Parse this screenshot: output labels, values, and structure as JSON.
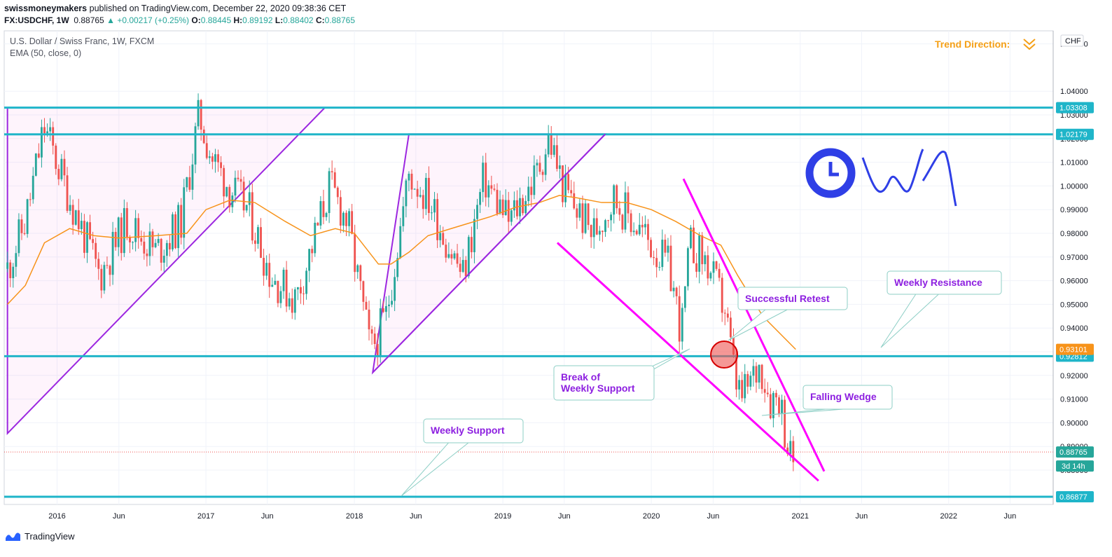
{
  "header": {
    "publisher": "swissmoneymakers",
    "published_text": "published on TradingView.com, December 22, 2020 09:38:36 CET",
    "symbol": "FX:USDCHF, 1W",
    "last": "0.88765",
    "change": "+0.00217 (+0.25%)",
    "open_label": "O:",
    "open": "0.88445",
    "high_label": "H:",
    "high": "0.89192",
    "low_label": "L:",
    "low": "0.88402",
    "close_label": "C:",
    "close": "0.88765"
  },
  "legend": {
    "title": "U.S. Dollar / Swiss Franc, 1W, FXCM",
    "indicator": "EMA (50, close, 0)"
  },
  "currency_badge": "CHF",
  "trend_direction": "Trend Direction:",
  "footer": {
    "brand": "TradingView"
  },
  "colors": {
    "up": "#26a69a",
    "down": "#ef5350",
    "ema": "#f7931a",
    "level": "#1fb5c9",
    "triangle": "#9c27e0",
    "wedge": "#ff00ff",
    "annotation": "#8d1fe0",
    "trend": "#f5a017",
    "logo": "#2f3fe6"
  },
  "annotations": {
    "successful_retest": "Successful Retest",
    "weekly_resistance": "Weekly Resistance",
    "break_line1": "Break of",
    "break_line2": "Weekly Support",
    "falling_wedge": "Falling Wedge",
    "weekly_support": "Weekly Support"
  },
  "chart_data": {
    "type": "candlestick",
    "title": "U.S. Dollar / Swiss Franc, 1W, FXCM",
    "indicator": "EMA (50, close, 0)",
    "x_range": [
      "2015-09",
      "2022-09"
    ],
    "ylim": [
      0.8655,
      1.0655
    ],
    "y_ticks": [
      0.86877,
      0.88,
      0.89,
      0.9,
      0.91,
      0.92,
      0.93,
      0.94,
      0.95,
      0.96,
      0.97,
      0.98,
      0.99,
      1.0,
      1.01,
      1.02,
      1.03,
      1.04,
      1.06
    ],
    "y_tick_labels": [
      "0.86877",
      "0.88000",
      "0.89000",
      "0.90000",
      "0.91000",
      "0.92000",
      "0.93000",
      "0.94000",
      "0.95000",
      "0.96000",
      "0.97000",
      "0.98000",
      "0.99000",
      "1.00000",
      "1.01000",
      "1.02000",
      "1.03000",
      "1.04000",
      "1.06000"
    ],
    "x_ticks": [
      {
        "date": "2016-01",
        "label": "2016"
      },
      {
        "date": "2016-06",
        "label": "Jun"
      },
      {
        "date": "2017-01",
        "label": "2017"
      },
      {
        "date": "2017-06",
        "label": "Jun"
      },
      {
        "date": "2018-01",
        "label": "2018"
      },
      {
        "date": "2018-06",
        "label": "Jun"
      },
      {
        "date": "2019-01",
        "label": "2019"
      },
      {
        "date": "2019-06",
        "label": "Jun"
      },
      {
        "date": "2020-01",
        "label": "2020"
      },
      {
        "date": "2020-06",
        "label": "Jun"
      },
      {
        "date": "2021-01",
        "label": "2021"
      },
      {
        "date": "2021-06",
        "label": "Jun"
      },
      {
        "date": "2022-01",
        "label": "2022"
      },
      {
        "date": "2022-06",
        "label": "Jun"
      }
    ],
    "close_path": [
      {
        "date": "2015-09-01",
        "value": 0.965
      },
      {
        "date": "2015-10-15",
        "value": 0.985
      },
      {
        "date": "2015-11-30",
        "value": 1.025
      },
      {
        "date": "2016-02-01",
        "value": 0.995
      },
      {
        "date": "2016-04-15",
        "value": 0.962
      },
      {
        "date": "2016-06-20",
        "value": 0.985
      },
      {
        "date": "2016-09-01",
        "value": 0.972
      },
      {
        "date": "2016-11-01",
        "value": 0.985
      },
      {
        "date": "2016-12-15",
        "value": 1.03
      },
      {
        "date": "2017-01-15",
        "value": 1.012
      },
      {
        "date": "2017-03-01",
        "value": 0.999
      },
      {
        "date": "2017-04-15",
        "value": 0.99
      },
      {
        "date": "2017-06-10",
        "value": 0.962
      },
      {
        "date": "2017-08-10",
        "value": 0.952
      },
      {
        "date": "2017-09-20",
        "value": 0.975
      },
      {
        "date": "2017-11-01",
        "value": 1.0
      },
      {
        "date": "2017-12-15",
        "value": 0.985
      },
      {
        "date": "2018-02-10",
        "value": 0.93
      },
      {
        "date": "2018-03-20",
        "value": 0.945
      },
      {
        "date": "2018-05-15",
        "value": 1.005
      },
      {
        "date": "2018-07-01",
        "value": 0.995
      },
      {
        "date": "2018-08-20",
        "value": 0.975
      },
      {
        "date": "2018-09-25",
        "value": 0.962
      },
      {
        "date": "2018-11-15",
        "value": 1.003
      },
      {
        "date": "2019-01-15",
        "value": 0.985
      },
      {
        "date": "2019-03-20",
        "value": 1.003
      },
      {
        "date": "2019-04-25",
        "value": 1.02
      },
      {
        "date": "2019-06-01",
        "value": 0.998
      },
      {
        "date": "2019-08-10",
        "value": 0.98
      },
      {
        "date": "2019-10-01",
        "value": 0.995
      },
      {
        "date": "2019-12-20",
        "value": 0.978
      },
      {
        "date": "2020-02-15",
        "value": 0.965
      },
      {
        "date": "2020-03-15",
        "value": 0.938
      },
      {
        "date": "2020-04-05",
        "value": 0.975
      },
      {
        "date": "2020-05-15",
        "value": 0.968
      },
      {
        "date": "2020-06-30",
        "value": 0.948
      },
      {
        "date": "2020-07-25",
        "value": 0.918
      },
      {
        "date": "2020-08-10",
        "value": 0.91
      },
      {
        "date": "2020-09-25",
        "value": 0.925
      },
      {
        "date": "2020-10-20",
        "value": 0.91
      },
      {
        "date": "2020-11-10",
        "value": 0.912
      },
      {
        "date": "2020-12-07",
        "value": 0.885
      },
      {
        "date": "2020-12-21",
        "value": 0.8877
      }
    ],
    "ema50": [
      {
        "date": "2015-09-01",
        "value": 0.95
      },
      {
        "date": "2015-10-15",
        "value": 0.958
      },
      {
        "date": "2015-12-01",
        "value": 0.976
      },
      {
        "date": "2016-02-01",
        "value": 0.982
      },
      {
        "date": "2016-04-01",
        "value": 0.979
      },
      {
        "date": "2016-06-01",
        "value": 0.978
      },
      {
        "date": "2016-09-01",
        "value": 0.979
      },
      {
        "date": "2016-11-15",
        "value": 0.98
      },
      {
        "date": "2017-01-01",
        "value": 0.99
      },
      {
        "date": "2017-03-01",
        "value": 0.994
      },
      {
        "date": "2017-05-01",
        "value": 0.993
      },
      {
        "date": "2017-07-15",
        "value": 0.985
      },
      {
        "date": "2017-09-15",
        "value": 0.979
      },
      {
        "date": "2017-11-15",
        "value": 0.982
      },
      {
        "date": "2018-01-01",
        "value": 0.98
      },
      {
        "date": "2018-03-01",
        "value": 0.967
      },
      {
        "date": "2018-04-01",
        "value": 0.967
      },
      {
        "date": "2018-05-15",
        "value": 0.972
      },
      {
        "date": "2018-07-01",
        "value": 0.979
      },
      {
        "date": "2018-09-15",
        "value": 0.983
      },
      {
        "date": "2018-12-01",
        "value": 0.987
      },
      {
        "date": "2019-02-01",
        "value": 0.991
      },
      {
        "date": "2019-04-01",
        "value": 0.993
      },
      {
        "date": "2019-05-20",
        "value": 0.996
      },
      {
        "date": "2019-07-01",
        "value": 0.995
      },
      {
        "date": "2019-09-01",
        "value": 0.993
      },
      {
        "date": "2019-11-01",
        "value": 0.993
      },
      {
        "date": "2020-01-01",
        "value": 0.99
      },
      {
        "date": "2020-03-01",
        "value": 0.985
      },
      {
        "date": "2020-05-01",
        "value": 0.979
      },
      {
        "date": "2020-06-20",
        "value": 0.975
      },
      {
        "date": "2020-08-01",
        "value": 0.962
      },
      {
        "date": "2020-10-01",
        "value": 0.945
      },
      {
        "date": "2020-12-21",
        "value": 0.931
      }
    ],
    "horizontal_levels": [
      {
        "value": 1.03308,
        "label": "1.03308"
      },
      {
        "value": 1.02179,
        "label": "1.02179"
      },
      {
        "value": 0.92812,
        "label": "0.92812"
      },
      {
        "value": 0.86877,
        "label": "0.86877"
      }
    ],
    "price_labels": [
      {
        "value": 0.93101,
        "label": "0.93101",
        "kind": "ema"
      },
      {
        "value": 0.88765,
        "label": "0.88765",
        "kind": "last"
      }
    ],
    "countdown": "3d 14h",
    "triangles": [
      {
        "points": [
          {
            "date": "2015-09-01",
            "value": 0.8955
          },
          {
            "date": "2017-10-20",
            "value": 1.033
          },
          {
            "date": "2015-09-01",
            "value": 1.033
          }
        ]
      },
      {
        "points": [
          {
            "date": "2018-02-15",
            "value": 0.9212
          },
          {
            "date": "2018-05-15",
            "value": 1.0219
          },
          {
            "date": "2019-09-10",
            "value": 1.0219
          }
        ]
      }
    ],
    "trendlines": [
      {
        "from": {
          "date": "2018-02-15",
          "value": 0.9212
        },
        "to": {
          "date": "2019-09-10",
          "value": 1.0219
        },
        "color": "triangle"
      },
      {
        "from": {
          "date": "2019-05-15",
          "value": 0.976
        },
        "to": {
          "date": "2021-02-15",
          "value": 0.8755
        },
        "color": "wedge"
      },
      {
        "from": {
          "date": "2020-03-20",
          "value": 1.003
        },
        "to": {
          "date": "2021-03-01",
          "value": 0.8795
        },
        "color": "wedge"
      }
    ],
    "marker": {
      "date": "2020-06-28",
      "value": 0.9288
    }
  }
}
